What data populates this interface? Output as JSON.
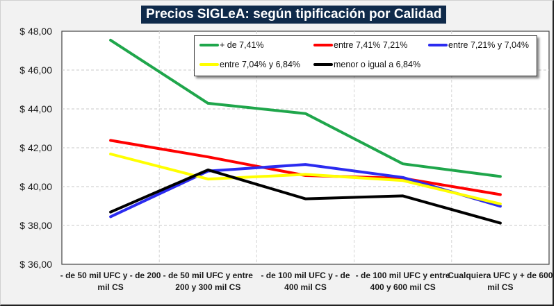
{
  "chart_data": {
    "type": "line",
    "title": "Precios SIGLeA: según tipificación por Calidad",
    "xlabel": "",
    "ylabel": "",
    "ylim": [
      36,
      48
    ],
    "yticks": [
      36,
      38,
      40,
      42,
      44,
      46,
      48
    ],
    "ytick_labels": [
      "$ 36,00",
      "$ 38,00",
      "$ 40,00",
      "$ 42,00",
      "$ 44,00",
      "$ 46,00",
      "$ 48,00"
    ],
    "grid": true,
    "legend_position": "top-right",
    "categories": [
      [
        "- de 50 mil UFC y - de 200",
        "mil CS"
      ],
      [
        "- de 50 mil UFC y entre",
        "200 y 300 mil CS"
      ],
      [
        "- de 100 mil UFC y - de",
        "400 mil CS"
      ],
      [
        "- de 100 mil UFC y entre",
        "400 y 600 mil CS"
      ],
      [
        "Cualquiera UFC y + de 600",
        "mil CS"
      ]
    ],
    "series": [
      {
        "name": "+ de 7,41%",
        "color": "#1fa64b",
        "values": [
          47.54,
          44.29,
          43.76,
          41.17,
          40.52
        ]
      },
      {
        "name": "entre 7,41% 7,21%",
        "color": "#ff0000",
        "values": [
          42.38,
          41.53,
          40.57,
          40.43,
          39.59
        ]
      },
      {
        "name": "entre 7,21% y 7,04%",
        "color": "#2b2bf0",
        "values": [
          38.45,
          40.8,
          41.14,
          40.47,
          38.99
        ]
      },
      {
        "name": "entre 7,04% y 6,84%",
        "color": "#ffff00",
        "values": [
          41.68,
          40.39,
          40.63,
          40.31,
          39.11
        ]
      },
      {
        "name": "menor o igual a 6,84%",
        "color": "#000000",
        "values": [
          38.69,
          40.86,
          39.37,
          39.52,
          38.12
        ]
      }
    ]
  }
}
